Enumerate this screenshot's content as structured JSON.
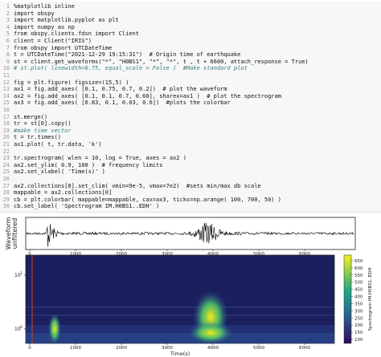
{
  "code": {
    "lines": [
      {
        "n": "1",
        "code": "%matplotlib inline"
      },
      {
        "n": "2",
        "code": "import obspy"
      },
      {
        "n": "3",
        "code": "import matplotlib.pyplot as plt"
      },
      {
        "n": "4",
        "code": "import numpy as np"
      },
      {
        "n": "5",
        "code": "from obspy.clients.fdsn import Client"
      },
      {
        "n": "6",
        "code": "client = Client(\"IRIS\")"
      },
      {
        "n": "7",
        "code": "from obspy import UTCDateTime"
      },
      {
        "n": "8",
        "code": "t = UTCDateTime(\"2021-12-29 19:15:31\")  # Origin time of earthquake"
      },
      {
        "n": "9",
        "code": "st = client.get_waveforms(\"*\", \"H0BS1\", \"*\", \"*\", t , t + 6600, attach_response = True)"
      },
      {
        "n": "10",
        "code": "# st.plot( linewidth=0.75, equal_scale = False )  #Make standard plot"
      },
      {
        "n": "11"
      },
      {
        "n": "12",
        "code": "fig = plt.figure( figsize=(15,5) )"
      },
      {
        "n": "13",
        "code": "ax1 = fig.add_axes( [0.1, 0.75, 0.7, 0.2])  # plot the waveform"
      },
      {
        "n": "14",
        "code": "ax2 = fig.add_axes( [0.1, 0.1, 0.7, 0.60], sharex=ax1 )  # plot the spectrogram"
      },
      {
        "n": "15",
        "code": "ax3 = fig.add_axes( [0.83, 0.1, 0.03, 0.6])  #plots the colorbar"
      },
      {
        "n": "16"
      },
      {
        "n": "17",
        "code": "st.merge()"
      },
      {
        "n": "18",
        "code": "tr = st[0].copy()"
      },
      {
        "n": "19",
        "code": "#make time vector"
      },
      {
        "n": "20",
        "code": "t = tr.times()"
      },
      {
        "n": "21",
        "code": "ax1.plot( t, tr.data, 'k')"
      },
      {
        "n": "22"
      },
      {
        "n": "23",
        "code": "tr.spectrogram( wlen = 10, log = True, axes = ax2 )"
      },
      {
        "n": "24",
        "code": "ax2.set_ylim( 0.9, 100 )  # frequency limits"
      },
      {
        "n": "25",
        "code": "ax2.set_xlabel( 'Time(s)' )"
      },
      {
        "n": "26"
      },
      {
        "n": "27",
        "code": "ax2.collections[0].set_clim( vmin=9e-5, vmax=7e2)  #sets min/max db scale"
      },
      {
        "n": "28",
        "code": "mappable = ax2.collections[0]"
      },
      {
        "n": "29",
        "code": "cb = plt.colorbar( mappable=mappable, cax=ax3, ticks=np.arange( 100, 700, 50) )"
      },
      {
        "n": "30",
        "code": "cb.set_label( 'Spectrogram IM.H0BS1..EDH' )"
      }
    ]
  },
  "figure": {
    "waveform_ylabel": [
      "Waveform",
      "unfiltered"
    ],
    "xticks": [
      "0",
      "1000",
      "2000",
      "3000",
      "4000",
      "5000",
      "6000"
    ],
    "spectrogram_yticks": [
      {
        "base": "10",
        "exp": "1"
      },
      {
        "base": "10",
        "exp": "0"
      }
    ],
    "xlabel": "Time(s)",
    "colorbar_ticks": [
      "650",
      "600",
      "550",
      "500",
      "450",
      "400",
      "350",
      "300",
      "250",
      "200",
      "150",
      "100"
    ],
    "colorbar_label": "Spectrogram IM.H0BS1..EDH"
  }
}
